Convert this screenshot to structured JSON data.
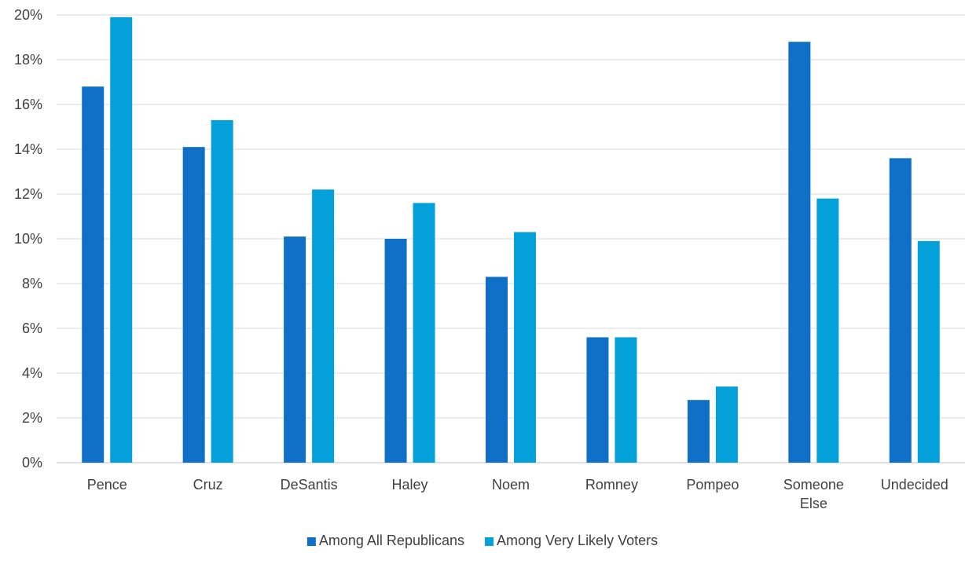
{
  "chart_data": {
    "type": "bar",
    "title": "",
    "xlabel": "",
    "ylabel": "",
    "categories": [
      "Pence",
      "Cruz",
      "DeSantis",
      "Haley",
      "Noem",
      "Romney",
      "Pompeo",
      "Someone Else",
      "Undecided"
    ],
    "series": [
      {
        "name": "Among All Republicans",
        "color": "#1070C8",
        "values": [
          16.8,
          14.1,
          10.1,
          10.0,
          8.3,
          5.6,
          2.8,
          18.8,
          13.6
        ]
      },
      {
        "name": "Among Very Likely Voters",
        "color": "#03A0DA",
        "values": [
          19.9,
          15.3,
          12.2,
          11.6,
          10.3,
          5.6,
          3.4,
          11.8,
          9.9
        ]
      }
    ],
    "ylim": [
      0,
      20
    ],
    "yticks": [
      "0%",
      "2%",
      "4%",
      "6%",
      "8%",
      "10%",
      "12%",
      "14%",
      "16%",
      "18%",
      "20%"
    ],
    "grid": true,
    "legend_position": "bottom"
  }
}
